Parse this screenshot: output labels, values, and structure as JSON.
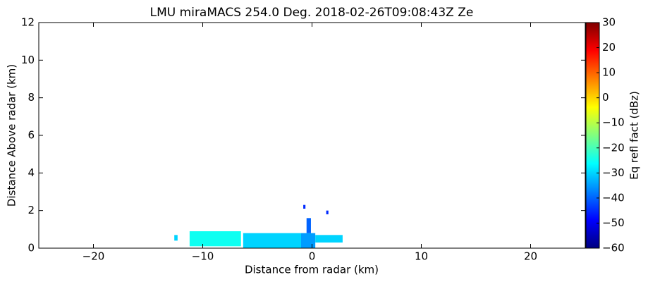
{
  "chart_data": {
    "type": "rhi",
    "title": "LMU miraMACS 254.0 Deg. 2018-02-26T09:08:43Z  Ze",
    "xlabel": "Distance from radar (km)",
    "ylabel": "Distance Above radar  (km)",
    "colorbar_label": "Eq refl fact (dBz)",
    "xlim": [
      -25,
      25
    ],
    "ylim": [
      0,
      12
    ],
    "xticks": [
      {
        "value": -20,
        "label": "−20"
      },
      {
        "value": -10,
        "label": "−10"
      },
      0,
      10,
      20
    ],
    "yticks": [
      0,
      2,
      4,
      6,
      8,
      10,
      12
    ],
    "clim": [
      -60,
      30
    ],
    "cticks": [
      {
        "value": -60,
        "label": "−60"
      },
      {
        "value": -50,
        "label": "−50"
      },
      {
        "value": -40,
        "label": "−40"
      },
      {
        "value": -30,
        "label": "−30"
      },
      {
        "value": -20,
        "label": "−20"
      },
      {
        "value": -10,
        "label": "−10"
      },
      0,
      10,
      20,
      30
    ],
    "colormap": "jet",
    "cells": [
      {
        "x": [
          -12.6,
          -12.3
        ],
        "y": [
          0.4,
          0.7
        ],
        "value": -30
      },
      {
        "x": [
          -11.2,
          -6.5
        ],
        "y": [
          0.1,
          0.9
        ],
        "value": -25
      },
      {
        "x": [
          -6.3,
          -1.0
        ],
        "y": [
          0.0,
          0.8
        ],
        "value": -30
      },
      {
        "x": [
          -1.0,
          0.3
        ],
        "y": [
          0.0,
          0.8
        ],
        "value": -35
      },
      {
        "x": [
          0.3,
          2.8
        ],
        "y": [
          0.3,
          0.7
        ],
        "value": -30
      },
      {
        "x": [
          -0.5,
          -0.1
        ],
        "y": [
          0.8,
          1.6
        ],
        "value": -40
      },
      {
        "x": [
          -0.8,
          -0.6
        ],
        "y": [
          2.1,
          2.3
        ],
        "value": -45
      },
      {
        "x": [
          1.3,
          1.5
        ],
        "y": [
          1.8,
          2.0
        ],
        "value": -45
      }
    ]
  }
}
